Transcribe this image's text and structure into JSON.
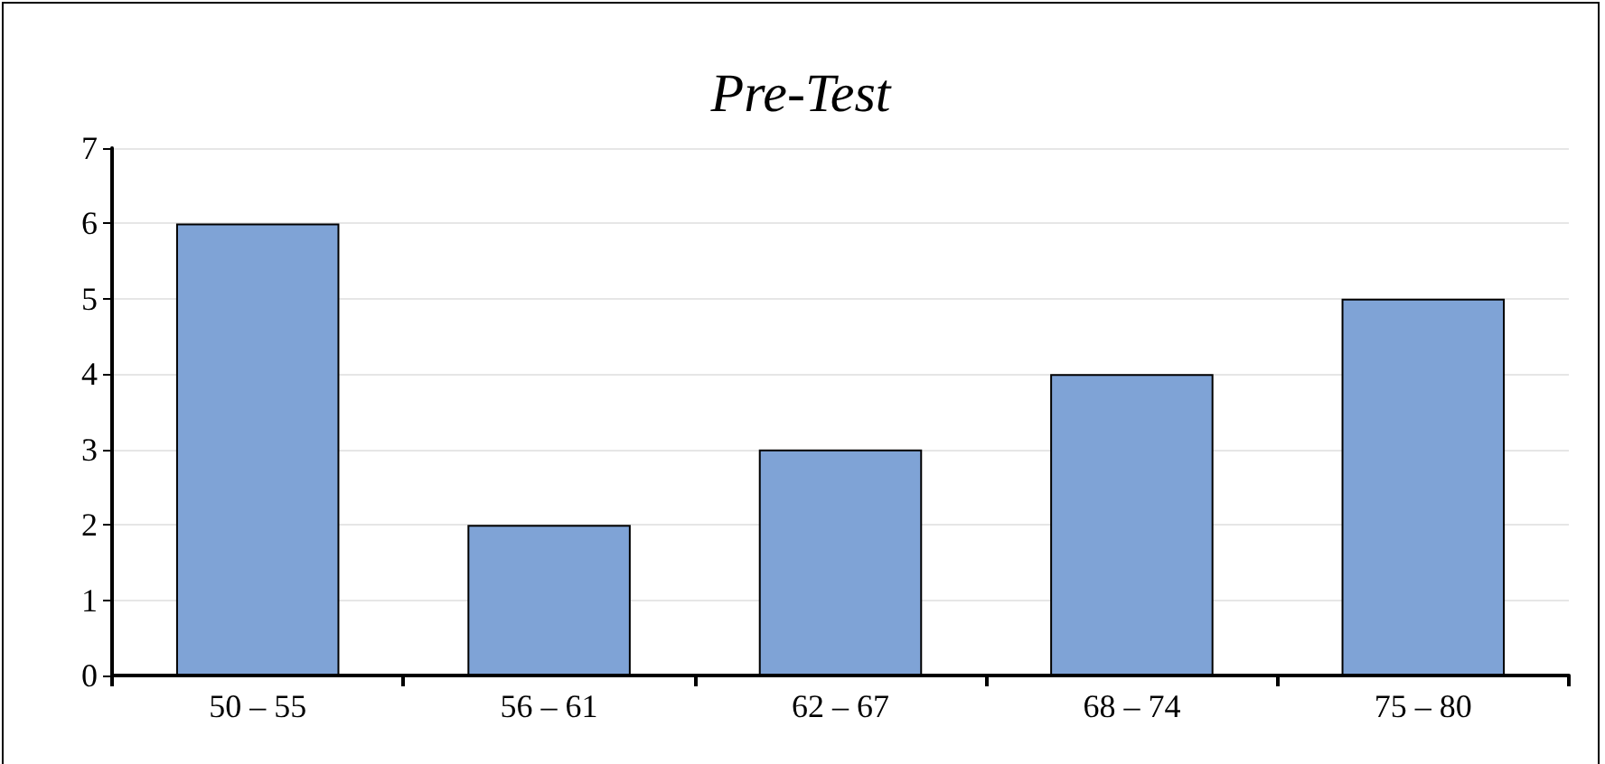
{
  "chart_data": {
    "type": "bar",
    "title": "Pre-Test",
    "categories": [
      "50 – 55",
      "56 – 61",
      "62 – 67",
      "68 – 74",
      "75 – 80"
    ],
    "values": [
      6,
      2,
      3,
      4,
      5
    ],
    "color": "#7fa3d6",
    "ylim": [
      0,
      7
    ],
    "yticks": [
      0,
      1,
      2,
      3,
      4,
      5,
      6,
      7
    ],
    "grid": "y"
  }
}
